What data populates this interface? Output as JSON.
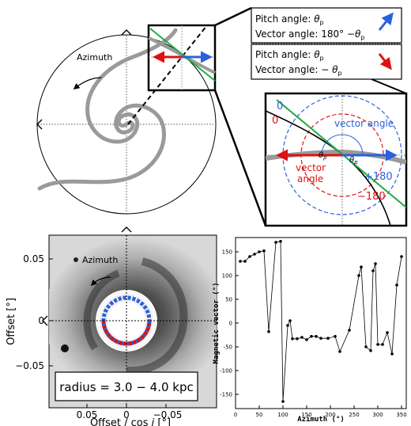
{
  "diagram": {
    "azimuth_label": "Azimuth",
    "legend_top": {
      "line1_prefix": "Pitch angle: ",
      "line1_symbol": "θ",
      "line1_sub": "p",
      "line2_prefix": "Vector angle: 180°  −",
      "line2_symbol": "θ",
      "line2_sub": "p",
      "arrow_color": "#2b60de"
    },
    "legend_bottom": {
      "line1_prefix": "Pitch angle: ",
      "line1_symbol": "θ",
      "line1_sub": "p",
      "line2_prefix": "Vector angle: − ",
      "line2_symbol": "θ",
      "line2_sub": "p",
      "arrow_color": "#dd1111"
    },
    "zoom": {
      "blue_zero": "0",
      "red_zero": "0",
      "blue_label": "vector angle",
      "red_label_line1": "vector",
      "red_label_line2": "angle",
      "theta": "θ",
      "theta_sub": "p",
      "plus180": "+180",
      "minus180": "−180"
    }
  },
  "image_panel": {
    "azimuth_label": "Azimuth",
    "ylabel": "Offset [°]",
    "xlabel_prefix": "Offset / cos ",
    "xlabel_italic": "i",
    "xlabel_suffix": " [°]",
    "yticks": [
      "0.05",
      "0",
      "−0.05"
    ],
    "xticks": [
      "0.05",
      "0",
      "−0.05"
    ],
    "caption": "radius = 3.0 − 4.0 kpc"
  },
  "chart_data": {
    "type": "line",
    "xlabel": "Azimuth (°)",
    "ylabel": "Magnetic vector (°)",
    "xlim": [
      0,
      360
    ],
    "ylim": [
      -180,
      180
    ],
    "xticks": [
      0,
      50,
      100,
      150,
      200,
      250,
      300,
      350
    ],
    "yticks": [
      -150,
      -100,
      -50,
      0,
      50,
      100,
      150
    ],
    "x": [
      10,
      20,
      30,
      40,
      50,
      60,
      70,
      85,
      95,
      100,
      110,
      115,
      120,
      130,
      140,
      150,
      160,
      170,
      180,
      195,
      210,
      220,
      240,
      260,
      265,
      275,
      285,
      290,
      295,
      300,
      310,
      320,
      330,
      340,
      350
    ],
    "y": [
      130,
      130,
      140,
      145,
      150,
      152,
      -18,
      170,
      172,
      -165,
      -5,
      5,
      -33,
      -33,
      -30,
      -35,
      -28,
      -28,
      -32,
      -32,
      -28,
      -60,
      -15,
      100,
      118,
      -50,
      -58,
      110,
      125,
      -45,
      -45,
      -20,
      -65,
      80,
      140
    ]
  }
}
